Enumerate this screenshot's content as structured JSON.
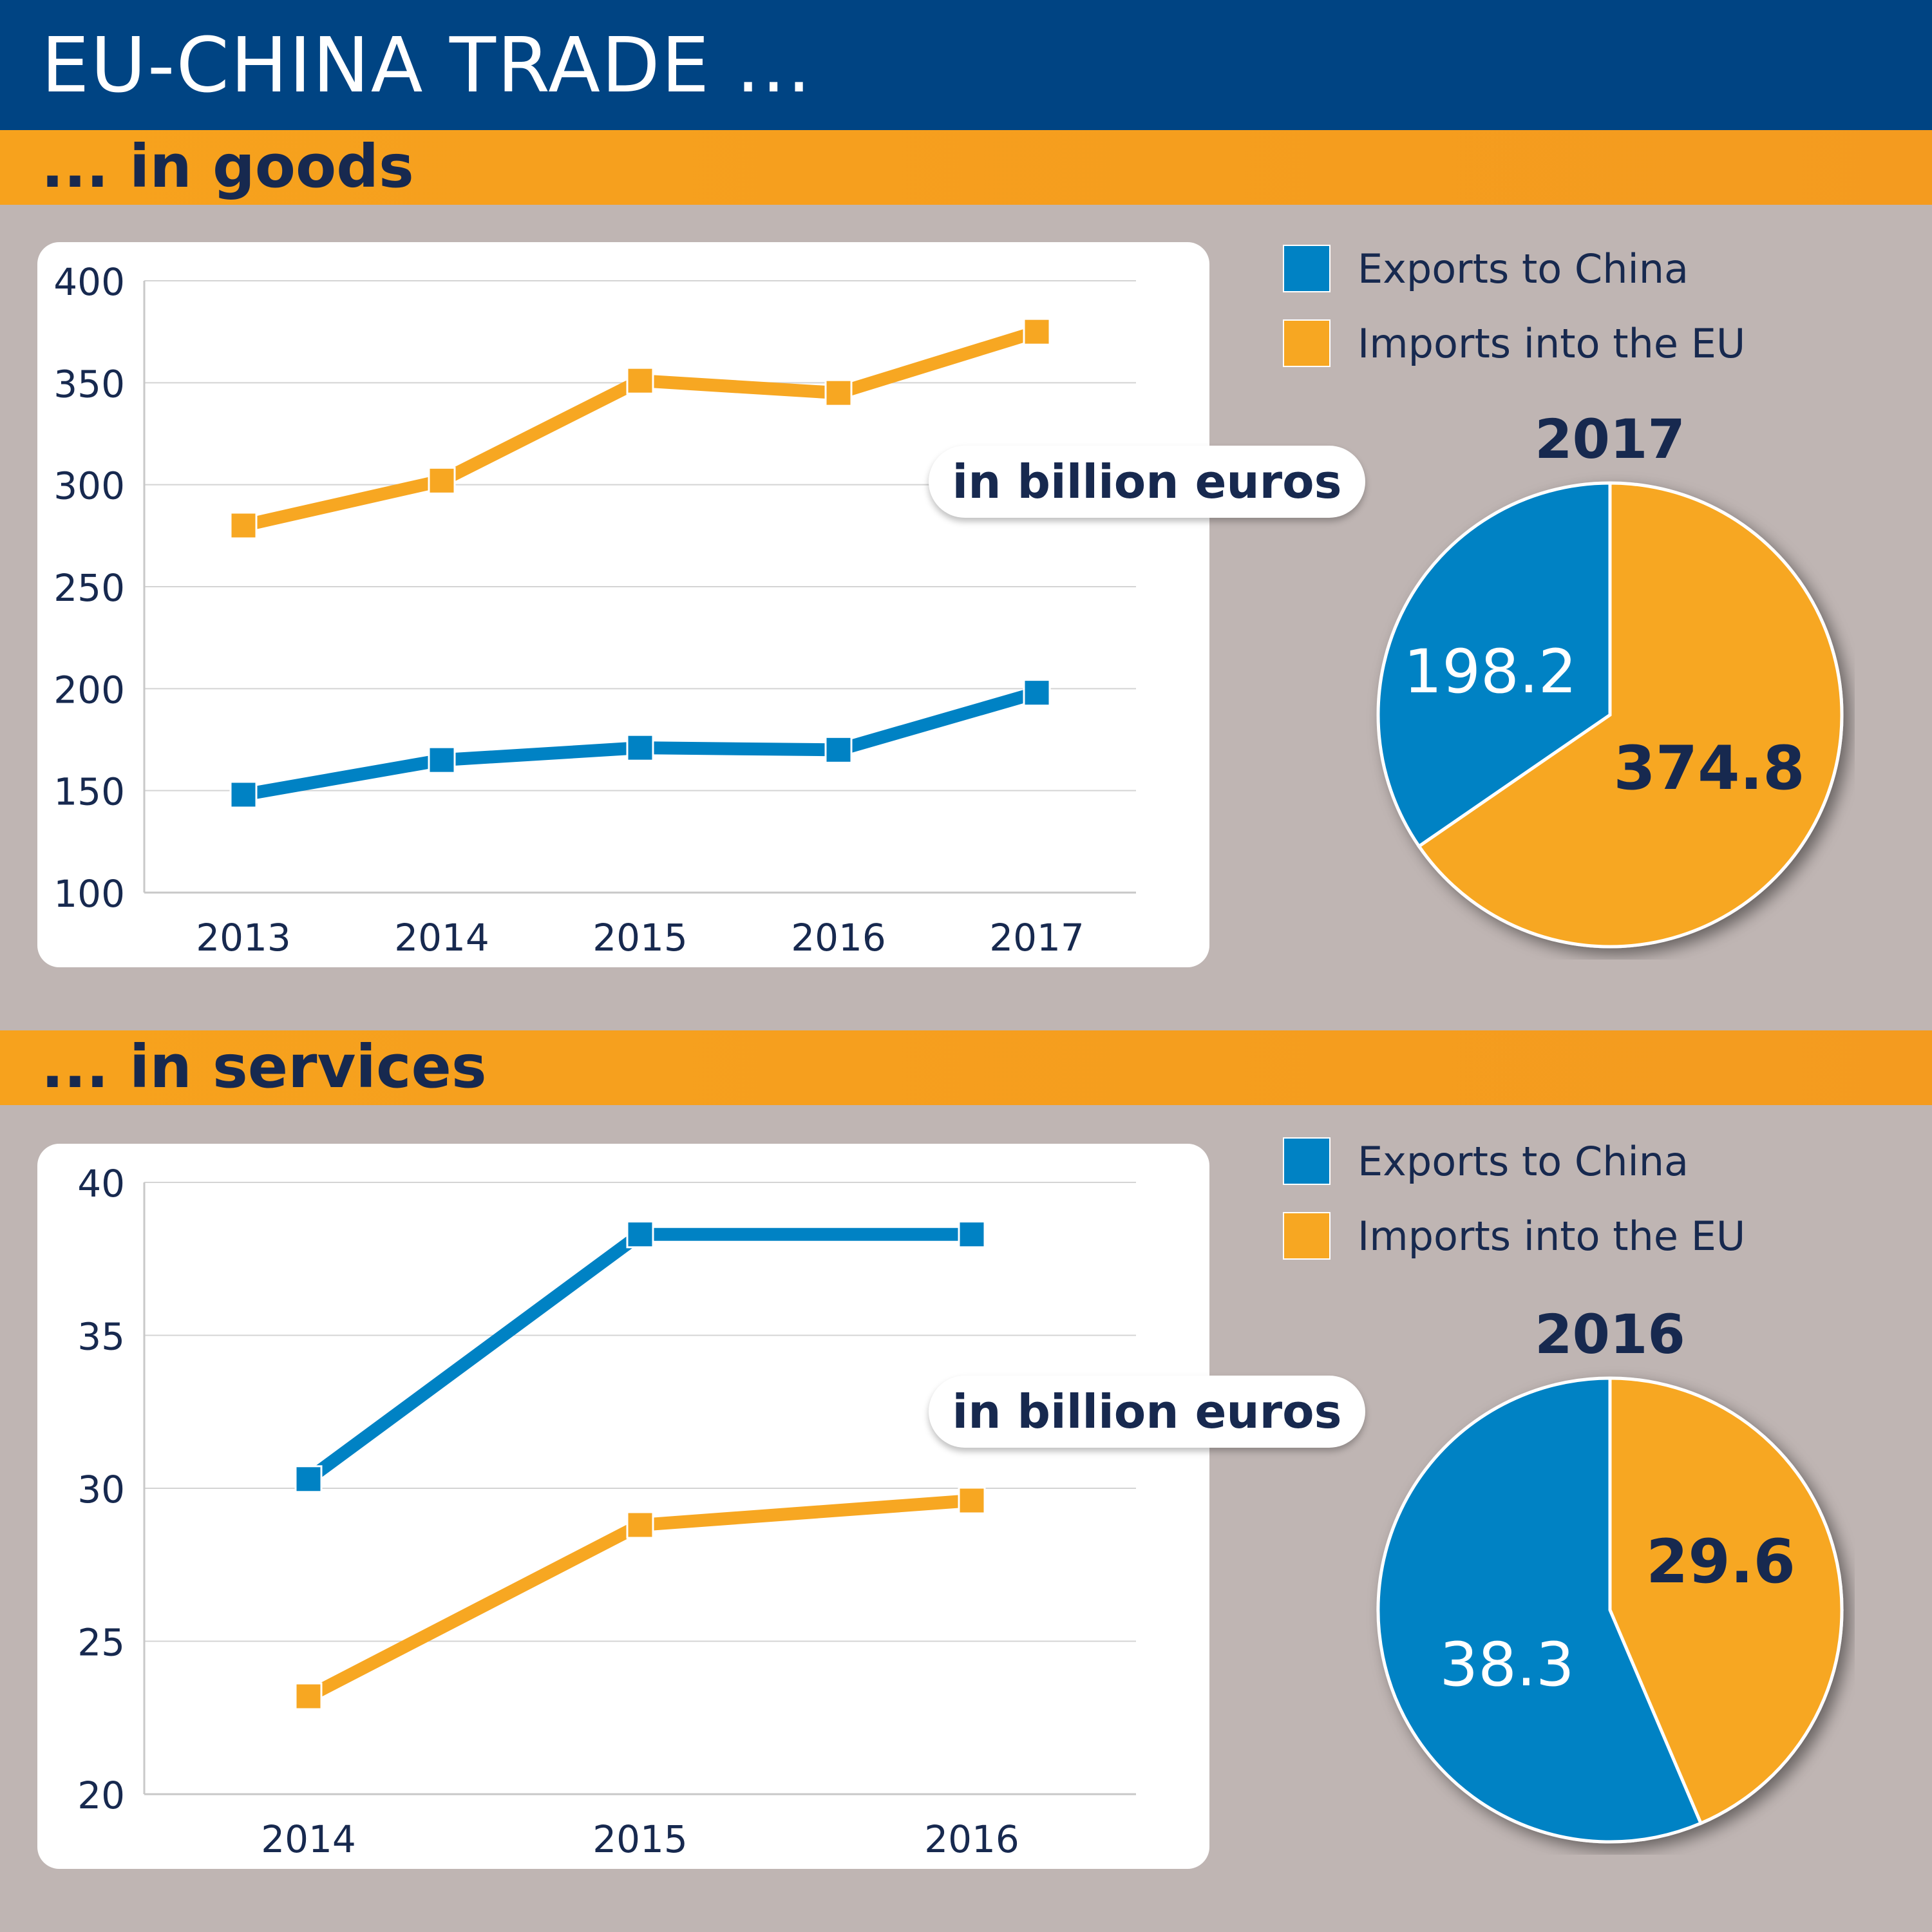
{
  "header": {
    "title": "EU-CHINA TRADE ..."
  },
  "sections": {
    "goods": {
      "heading": "... in goods",
      "unit_label": "in billion euros",
      "pie_year": "2017"
    },
    "services": {
      "heading": "... in services",
      "unit_label": "in billion euros",
      "pie_year": "2016"
    }
  },
  "legend": {
    "exports_label": "Exports to China",
    "imports_label": "Imports into the EU"
  },
  "colors": {
    "exports": "#0082c4",
    "imports": "#f7a722",
    "text_dark": "#17294f",
    "header_blue": "#004483"
  },
  "chart_data": [
    {
      "type": "line",
      "x": [
        "2013",
        "2014",
        "2015",
        "2016",
        "2017"
      ],
      "yticks": [
        "100",
        "150",
        "200",
        "250",
        "300",
        "350",
        "400"
      ],
      "ylim": [
        100,
        400
      ],
      "grid": true,
      "series": [
        {
          "name": "Exports to China",
          "values": [
            148,
            165,
            171,
            170,
            198
          ]
        },
        {
          "name": "Imports into the EU",
          "values": [
            280,
            302,
            351,
            345,
            375
          ]
        }
      ]
    },
    {
      "type": "pie",
      "title": "2017",
      "labels": [
        "Exports to China",
        "Imports into the EU"
      ],
      "values": [
        198.2,
        374.8
      ],
      "value_labels": [
        "198.2",
        "374.8"
      ]
    },
    {
      "type": "line",
      "x": [
        "2014",
        "2015",
        "2016"
      ],
      "yticks": [
        "20",
        "25",
        "30",
        "35",
        "40"
      ],
      "ylim": [
        20,
        40
      ],
      "grid": true,
      "series": [
        {
          "name": "Exports to China",
          "values": [
            30.3,
            38.3,
            38.3
          ]
        },
        {
          "name": "Imports into the EU",
          "values": [
            23.2,
            28.8,
            29.6
          ]
        }
      ]
    },
    {
      "type": "pie",
      "title": "2016",
      "labels": [
        "Exports to China",
        "Imports into the EU"
      ],
      "values": [
        38.3,
        29.6
      ],
      "value_labels": [
        "38.3",
        "29.6"
      ]
    }
  ]
}
